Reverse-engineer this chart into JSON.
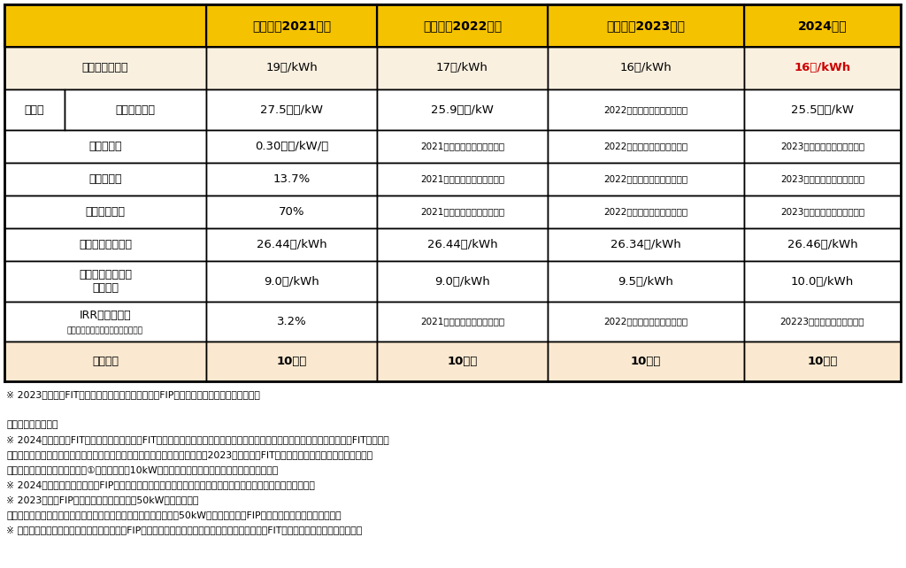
{
  "header_bg": "#F5C200",
  "row_bg_white": "#FFFFFF",
  "row_bg_fit": "#FAF0E0",
  "row_bg_light": "#FAE8D0",
  "border_color": "#000000",
  "red_text": "#CC0000",
  "headers": [
    "",
    "（参考）2021年度",
    "（参考）2022年度",
    "（参考）2023年度",
    "2024年度"
  ],
  "rows": [
    {
      "label": "ＦＩＴ調達価格",
      "sublabel": null,
      "values": [
        "19円/kWh",
        "17円/kWh",
        "16円/kWh",
        "16円/kWh"
      ],
      "bold": [
        false,
        false,
        false,
        true
      ],
      "red": [
        false,
        false,
        false,
        true
      ],
      "bg": "fit",
      "label_bold": true
    },
    {
      "label": "資本費",
      "sublabel": "システム費用",
      "values": [
        "27.5万円/kW",
        "25.9万円/kW",
        "2022年度の想定値を据え置き",
        "25.5万円/kW"
      ],
      "bold": [
        false,
        false,
        false,
        false
      ],
      "red": [
        false,
        false,
        false,
        false
      ],
      "bg": "white",
      "label_bold": false
    },
    {
      "label": "運転維持費",
      "sublabel": null,
      "values": [
        "0.30万円/kW/年",
        "2021年度の想定値を据え置き",
        "2022年度の想定値を据え置き",
        "2023年度の想定値を据え置き"
      ],
      "bold": [
        false,
        false,
        false,
        false
      ],
      "red": [
        false,
        false,
        false,
        false
      ],
      "bg": "white",
      "label_bold": false
    },
    {
      "label": "設備利用率",
      "sublabel": null,
      "values": [
        "13.7%",
        "2021年度の想定値を据え置き",
        "2022年度の想定値を据え置き",
        "2023年度の想定値を据え置き"
      ],
      "bold": [
        false,
        false,
        false,
        false
      ],
      "red": [
        false,
        false,
        false,
        false
      ],
      "bg": "white",
      "label_bold": false
    },
    {
      "label": "余剰売電比率",
      "sublabel": null,
      "values": [
        "70%",
        "2021年度の想定値を据え置き",
        "2022年度の想定値を据え置き",
        "2023年度の想定値を据え置き"
      ],
      "bold": [
        false,
        false,
        false,
        false
      ],
      "red": [
        false,
        false,
        false,
        false
      ],
      "bg": "white",
      "label_bold": false
    },
    {
      "label": "自家消費分の便益",
      "sublabel": null,
      "values": [
        "26.44円/kWh",
        "26.44円/kWh",
        "26.34円/kWh",
        "26.46円/kWh"
      ],
      "bold": [
        false,
        false,
        false,
        false
      ],
      "red": [
        false,
        false,
        false,
        false
      ],
      "bg": "white",
      "label_bold": false
    },
    {
      "label": "調達期間終了後の\n売電価格",
      "sublabel": null,
      "values": [
        "9.0円/kWh",
        "9.0円/kWh",
        "9.5円/kWh",
        "10.0円/kWh"
      ],
      "bold": [
        false,
        false,
        false,
        false
      ],
      "red": [
        false,
        false,
        false,
        false
      ],
      "bg": "white",
      "label_bold": false
    },
    {
      "label": "IRR（税引前）",
      "sublabel": "（法人税等の税引前の内部収益率）",
      "values": [
        "3.2%",
        "2021年度の想定値を据え置き",
        "2022年度の想定値を据え置き",
        "20223度の想定値を据え置き"
      ],
      "bold": [
        false,
        false,
        false,
        false
      ],
      "red": [
        false,
        false,
        false,
        false
      ],
      "bg": "white",
      "label_bold": false
    },
    {
      "label": "調達期間",
      "sublabel": null,
      "values": [
        "10年間",
        "10年間",
        "10年間",
        "10年間"
      ],
      "bold": [
        true,
        true,
        true,
        true
      ],
      "red": [
        false,
        false,
        false,
        false
      ],
      "bg": "light",
      "label_bold": true
    }
  ],
  "footer_lines": [
    "※ 2023年度は、FIT制度のみ認められる対象とし、FIP制度が認められる対象としない。",
    "",
    "（全電源共通事項）",
    "※ 2024年度以降のFIT調達価格については、FIT認定事業者が課税事業者の場合には当該調達価格に消費税を加えた額とし、FIT認定事業",
    "　者が免税事業者の場合には当該調達価格に消費税を含むものとする。なお、2023年度以前のFIT調達価格については、当該調達価格に",
    "　消費税を加えた額（ただし、①太陽光発電（10kW未満）は当該調達価格に消費税を含むもの）。",
    "※ 2024年度以降の調達価格・FIP基準価格等については、当該価格に加えて、追加的に発電側課金を考慮する。",
    "※ 2023年度はFIP制度が認められる対象を50kW以上とする。",
    "　ただし、事業用太陽光については、一定の条件を満たす場合には50kW未満であってもFIP制度が認められる対象とする。",
    "※ 沖縄地域・離島等供給エリアについては、FIP制度のみ認められる対象とされている場合にも、FIT制度を適用できることとする。"
  ]
}
